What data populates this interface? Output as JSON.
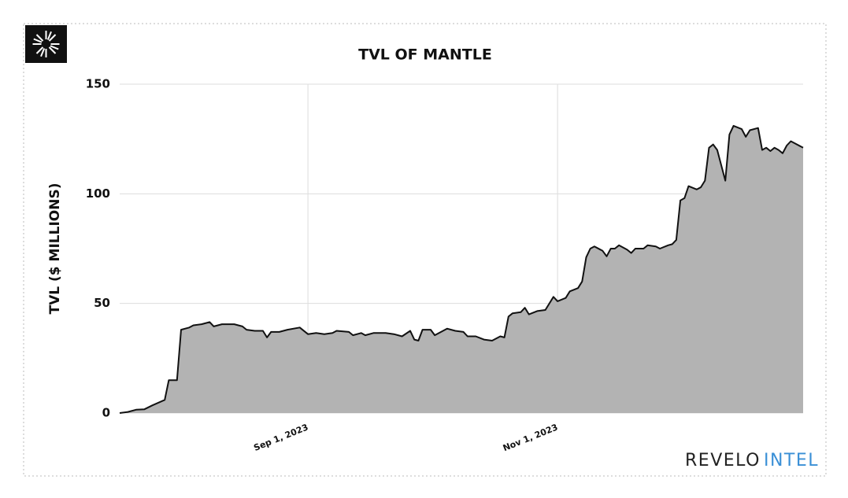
{
  "chart_data": {
    "type": "area",
    "title": "TVL OF MANTLE",
    "y_label": "TVL ($ MILLIONS)",
    "brand": {
      "primary": "REVELO",
      "secondary": "INTEL"
    },
    "color": "#b3b3b3",
    "line_color": "#111111",
    "grid": true,
    "xlim": [
      "2023-07-17",
      "2023-12-31"
    ],
    "xticks": [
      {
        "value": "2023-09-01",
        "label": "Sep 1, 2023"
      },
      {
        "value": "2023-11-01",
        "label": "Nov 1, 2023"
      }
    ],
    "ylim": [
      0,
      150
    ],
    "yticks": [
      0,
      50,
      100,
      150
    ],
    "x": [
      "2023-07-17",
      "2023-07-19",
      "2023-07-21",
      "2023-07-23",
      "2023-07-25",
      "2023-07-28",
      "2023-07-29",
      "2023-07-31",
      "2023-08-01",
      "2023-08-03",
      "2023-08-04",
      "2023-08-06",
      "2023-08-08",
      "2023-08-09",
      "2023-08-11",
      "2023-08-14",
      "2023-08-16",
      "2023-08-17",
      "2023-08-19",
      "2023-08-21",
      "2023-08-22",
      "2023-08-23",
      "2023-08-25",
      "2023-08-27",
      "2023-08-30",
      "2023-09-01",
      "2023-09-03",
      "2023-09-05",
      "2023-09-07",
      "2023-09-08",
      "2023-09-11",
      "2023-09-12",
      "2023-09-14",
      "2023-09-15",
      "2023-09-17",
      "2023-09-20",
      "2023-09-22",
      "2023-09-24",
      "2023-09-26",
      "2023-09-27",
      "2023-09-28",
      "2023-09-29",
      "2023-10-01",
      "2023-10-02",
      "2023-10-05",
      "2023-10-07",
      "2023-10-09",
      "2023-10-10",
      "2023-10-12",
      "2023-10-14",
      "2023-10-16",
      "2023-10-18",
      "2023-10-19",
      "2023-10-20",
      "2023-10-21",
      "2023-10-23",
      "2023-10-24",
      "2023-10-25",
      "2023-10-27",
      "2023-10-29",
      "2023-10-31",
      "2023-11-01",
      "2023-11-03",
      "2023-11-04",
      "2023-11-06",
      "2023-11-07",
      "2023-11-08",
      "2023-11-09",
      "2023-11-10",
      "2023-11-12",
      "2023-11-13",
      "2023-11-14",
      "2023-11-15",
      "2023-11-16",
      "2023-11-18",
      "2023-11-19",
      "2023-11-20",
      "2023-11-22",
      "2023-11-23",
      "2023-11-25",
      "2023-11-26",
      "2023-11-28",
      "2023-11-29",
      "2023-11-30",
      "2023-12-01",
      "2023-12-02",
      "2023-12-03",
      "2023-12-05",
      "2023-12-06",
      "2023-12-07",
      "2023-12-08",
      "2023-12-09",
      "2023-12-10",
      "2023-12-12",
      "2023-12-13",
      "2023-12-14",
      "2023-12-16",
      "2023-12-17",
      "2023-12-18",
      "2023-12-20",
      "2023-12-21",
      "2023-12-22",
      "2023-12-23",
      "2023-12-24",
      "2023-12-25",
      "2023-12-26",
      "2023-12-27",
      "2023-12-28",
      "2023-12-29",
      "2023-12-31"
    ],
    "values": [
      0,
      0.5,
      1.5,
      1.7,
      3.5,
      6,
      15,
      15,
      38,
      39,
      40,
      40.5,
      41.5,
      39.5,
      40.5,
      40.5,
      39.5,
      38,
      37.5,
      37.5,
      34.5,
      37,
      37,
      38,
      39,
      36,
      36.5,
      36,
      36.5,
      37.5,
      37,
      35.5,
      36.5,
      35.5,
      36.5,
      36.5,
      36,
      35,
      37.5,
      33.5,
      33,
      38,
      38,
      35.5,
      38.5,
      37.5,
      37,
      35,
      35,
      33.5,
      33,
      35,
      34.5,
      44,
      45.5,
      46,
      48,
      45,
      46.5,
      47,
      53,
      51,
      52.5,
      55.5,
      57,
      60,
      71,
      75,
      76,
      74,
      71.5,
      75,
      75,
      76.5,
      74.5,
      73,
      75,
      75,
      76.5,
      76,
      75,
      76.5,
      77,
      79,
      97,
      98,
      103.5,
      102,
      103,
      106,
      121,
      122.5,
      120,
      106,
      127,
      131,
      129.5,
      126,
      129,
      130,
      120,
      121,
      119.5,
      121,
      120,
      118.5,
      122,
      124,
      123,
      121
    ]
  }
}
